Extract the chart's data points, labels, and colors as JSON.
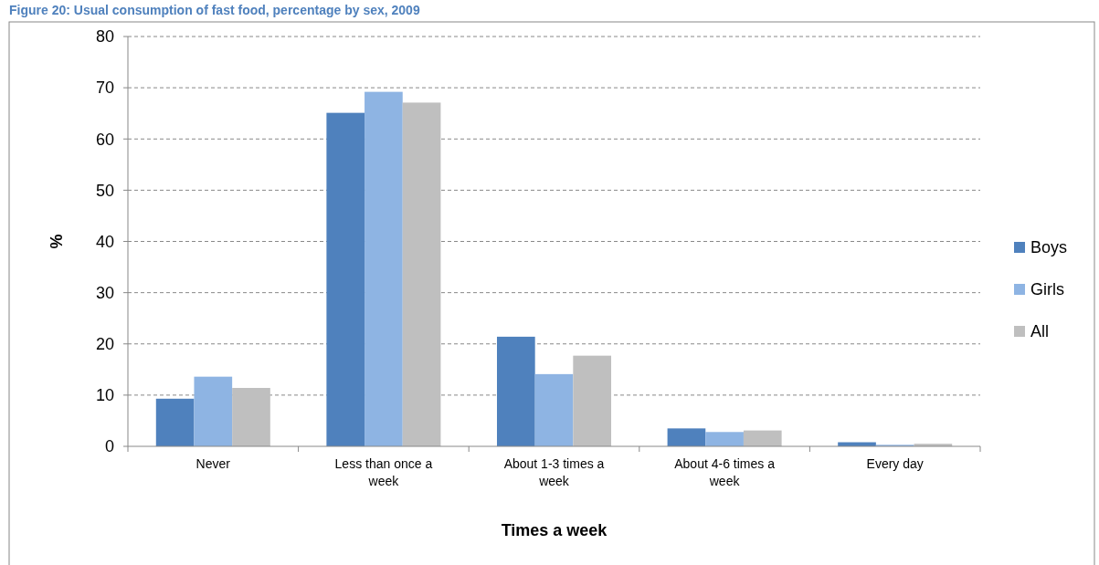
{
  "chart_data": {
    "type": "bar",
    "title": "Figure 20: Usual consumption of fast food, percentage by sex, 2009",
    "xlabel": "Times a week",
    "ylabel": "%",
    "categories": [
      "Never",
      "Less than once a week",
      "About 1-3 times a week",
      "About 4-6 times a week",
      "Every day"
    ],
    "series": [
      {
        "name": "Boys",
        "color": "#4f81bd",
        "values": [
          9.3,
          65.1,
          21.4,
          3.5,
          0.8
        ]
      },
      {
        "name": "Girls",
        "color": "#8eb4e3",
        "values": [
          13.6,
          69.2,
          14.1,
          2.8,
          0.3
        ]
      },
      {
        "name": "All",
        "color": "#bfbfbf",
        "values": [
          11.4,
          67.1,
          17.7,
          3.1,
          0.5
        ]
      }
    ],
    "ylim": [
      0,
      80
    ],
    "yticks": [
      0,
      10,
      20,
      30,
      40,
      50,
      60,
      70,
      80
    ],
    "grid": "y",
    "legend": "right"
  }
}
